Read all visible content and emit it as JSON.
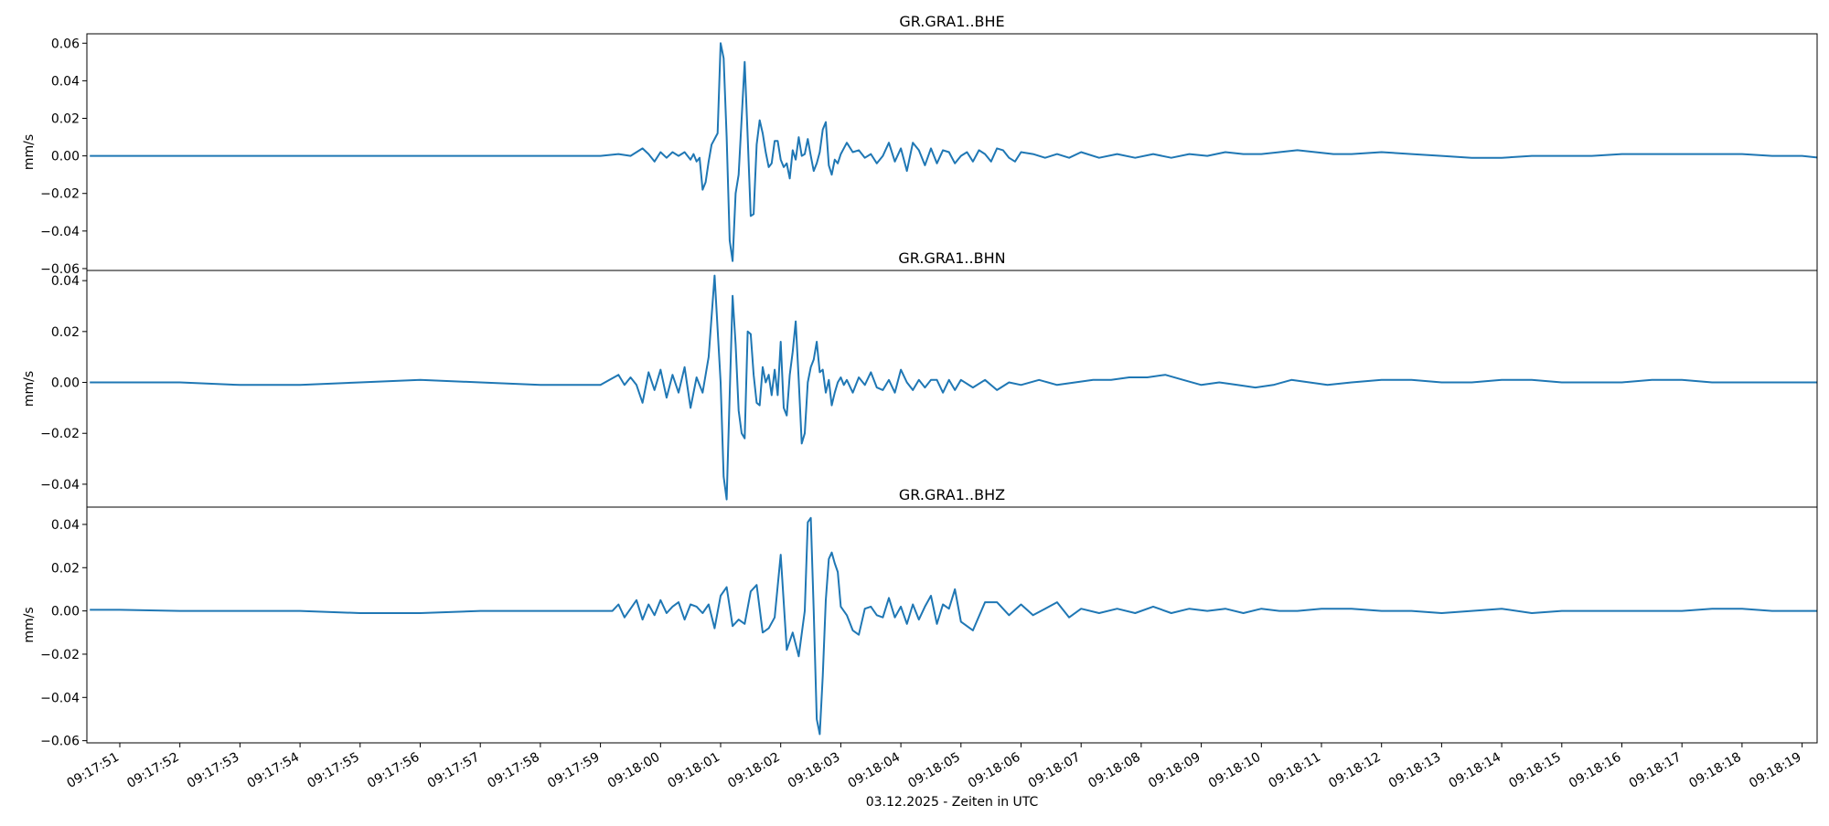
{
  "chart_data": {
    "type": "line",
    "line_color": "#1f77b4",
    "xlabel": "03.12.2025 - Zeiten in UTC",
    "x_ticks": [
      "09:17:51",
      "09:17:52",
      "09:17:53",
      "09:17:54",
      "09:17:55",
      "09:17:56",
      "09:17:57",
      "09:17:58",
      "09:17:59",
      "09:18:00",
      "09:18:01",
      "09:18:02",
      "09:18:03",
      "09:18:04",
      "09:18:05",
      "09:18:06",
      "09:18:07",
      "09:18:08",
      "09:18:09",
      "09:18:10",
      "09:18:11",
      "09:18:12",
      "09:18:13",
      "09:18:14",
      "09:18:15",
      "09:18:16",
      "09:18:17",
      "09:18:18",
      "09:18:19"
    ],
    "xlim": [
      "09:17:50.5",
      "09:18:19.3"
    ],
    "panels": [
      {
        "title": "GR.GRA1..BHE",
        "ylabel": "mm/s",
        "ylim": [
          -0.061,
          0.065
        ],
        "y_ticks": [
          "0.06",
          "0.04",
          "0.02",
          "0.00",
          "−0.02",
          "−0.04",
          "−0.06"
        ],
        "y_tick_values": [
          0.06,
          0.04,
          0.02,
          0.0,
          -0.02,
          -0.04,
          -0.06
        ],
        "series": [
          {
            "x": [
              -0.5,
              0,
              2,
              4,
              6,
              8,
              8.3,
              8.5,
              8.7,
              8.8,
              8.9,
              9.0,
              9.1,
              9.2,
              9.3,
              9.4,
              9.5,
              9.55,
              9.6,
              9.65,
              9.7,
              9.75,
              9.8,
              9.85,
              9.9,
              9.95,
              10.0,
              10.05,
              10.1,
              10.15,
              10.2,
              10.25,
              10.3,
              10.35,
              10.4,
              10.45,
              10.5,
              10.55,
              10.6,
              10.65,
              10.7,
              10.75,
              10.8,
              10.85,
              10.9,
              10.95,
              11.0,
              11.05,
              11.1,
              11.15,
              11.2,
              11.25,
              11.3,
              11.35,
              11.4,
              11.45,
              11.5,
              11.55,
              11.6,
              11.65,
              11.7,
              11.75,
              11.8,
              11.85,
              11.9,
              11.95,
              12.0,
              12.1,
              12.2,
              12.3,
              12.4,
              12.5,
              12.6,
              12.7,
              12.8,
              12.9,
              13.0,
              13.1,
              13.2,
              13.3,
              13.4,
              13.5,
              13.6,
              13.7,
              13.8,
              13.9,
              14.0,
              14.1,
              14.2,
              14.3,
              14.4,
              14.5,
              14.6,
              14.7,
              14.8,
              14.9,
              15.0,
              15.2,
              15.4,
              15.6,
              15.8,
              16.0,
              16.3,
              16.6,
              16.9,
              17.2,
              17.5,
              17.8,
              18.1,
              18.4,
              18.7,
              19.0,
              19.3,
              19.6,
              19.9,
              20.2,
              20.5,
              21.0,
              21.5,
              22.0,
              22.5,
              23.0,
              23.5,
              24.0,
              24.5,
              25.0,
              25.5,
              26.0,
              26.5,
              27.0,
              27.5,
              28.0,
              28.3
            ],
            "y": [
              0,
              0,
              0,
              0,
              0,
              0,
              0.001,
              0.0,
              0.004,
              0.001,
              -0.003,
              0.002,
              -0.001,
              0.002,
              0.0,
              0.002,
              -0.002,
              0.001,
              -0.003,
              -0.001,
              -0.018,
              -0.014,
              -0.003,
              0.006,
              0.009,
              0.012,
              0.06,
              0.052,
              0.01,
              -0.045,
              -0.056,
              -0.02,
              -0.01,
              0.02,
              0.05,
              0.01,
              -0.032,
              -0.031,
              0.006,
              0.019,
              0.012,
              0.002,
              -0.006,
              -0.004,
              0.008,
              0.008,
              -0.002,
              -0.006,
              -0.004,
              -0.012,
              0.003,
              -0.002,
              0.01,
              0.0,
              0.001,
              0.009,
              0.0,
              -0.008,
              -0.004,
              0.002,
              0.014,
              0.018,
              -0.005,
              -0.01,
              -0.002,
              -0.004,
              0.001,
              0.007,
              0.002,
              0.003,
              -0.001,
              0.001,
              -0.004,
              0.0,
              0.007,
              -0.003,
              0.004,
              -0.008,
              0.007,
              0.003,
              -0.005,
              0.004,
              -0.004,
              0.003,
              0.002,
              -0.004,
              0.0,
              0.002,
              -0.003,
              0.003,
              0.001,
              -0.003,
              0.004,
              0.003,
              -0.001,
              -0.003,
              0.002,
              0.001,
              -0.001,
              0.001,
              -0.001,
              0.002,
              -0.001,
              0.001,
              -0.001,
              0.001,
              -0.001,
              0.001,
              0.0,
              0.002,
              0.001,
              0.001,
              0.002,
              0.003,
              0.002,
              0.001,
              0.001,
              0.002,
              0.001,
              0.0,
              -0.001,
              -0.001,
              0.0,
              0.0,
              0.0,
              0.001,
              0.001,
              0.001,
              0.001,
              0.001,
              0.0,
              0.0,
              -0.001
            ]
          }
        ]
      },
      {
        "title": "GR.GRA1..BHN",
        "ylabel": "mm/s",
        "ylim": [
          -0.049,
          0.044
        ],
        "y_ticks": [
          "0.04",
          "0.02",
          "0.00",
          "−0.02",
          "−0.04"
        ],
        "y_tick_values": [
          0.04,
          0.02,
          0.0,
          -0.02,
          -0.04
        ],
        "series": [
          {
            "x": [
              -0.5,
              1,
              2,
              3,
              4,
              5,
              6,
              7,
              8,
              8.3,
              8.4,
              8.5,
              8.6,
              8.7,
              8.8,
              8.9,
              9.0,
              9.1,
              9.2,
              9.3,
              9.4,
              9.5,
              9.6,
              9.7,
              9.8,
              9.9,
              10.0,
              10.05,
              10.1,
              10.15,
              10.2,
              10.25,
              10.3,
              10.35,
              10.4,
              10.45,
              10.5,
              10.55,
              10.6,
              10.65,
              10.7,
              10.75,
              10.8,
              10.85,
              10.9,
              10.95,
              11.0,
              11.05,
              11.1,
              11.15,
              11.2,
              11.25,
              11.3,
              11.35,
              11.4,
              11.45,
              11.5,
              11.55,
              11.6,
              11.65,
              11.7,
              11.75,
              11.8,
              11.85,
              11.9,
              11.95,
              12.0,
              12.05,
              12.1,
              12.2,
              12.3,
              12.4,
              12.5,
              12.6,
              12.7,
              12.8,
              12.9,
              13.0,
              13.1,
              13.2,
              13.3,
              13.4,
              13.5,
              13.6,
              13.7,
              13.8,
              13.9,
              14.0,
              14.2,
              14.4,
              14.6,
              14.8,
              15.0,
              15.3,
              15.6,
              15.9,
              16.2,
              16.5,
              16.8,
              17.1,
              17.4,
              17.7,
              18.0,
              18.3,
              18.6,
              18.9,
              19.2,
              19.5,
              19.8,
              20.1,
              20.5,
              21.0,
              21.5,
              22.0,
              22.5,
              23.0,
              23.5,
              24.0,
              24.5,
              25.0,
              25.5,
              26.0,
              26.5,
              27.0,
              27.5,
              28.0,
              28.3
            ],
            "y": [
              0,
              0,
              -0.001,
              -0.001,
              0.0,
              0.001,
              0.0,
              -0.001,
              -0.001,
              0.003,
              -0.001,
              0.002,
              -0.001,
              -0.008,
              0.004,
              -0.003,
              0.005,
              -0.006,
              0.003,
              -0.004,
              0.006,
              -0.01,
              0.002,
              -0.004,
              0.01,
              0.042,
              0.0,
              -0.037,
              -0.046,
              -0.005,
              0.034,
              0.015,
              -0.011,
              -0.02,
              -0.022,
              0.02,
              0.019,
              0.003,
              -0.008,
              -0.009,
              0.006,
              0.0,
              0.003,
              -0.005,
              0.005,
              -0.005,
              0.016,
              -0.01,
              -0.013,
              0.003,
              0.012,
              0.024,
              0.001,
              -0.024,
              -0.02,
              0.0,
              0.006,
              0.009,
              0.016,
              0.004,
              0.005,
              -0.004,
              0.001,
              -0.009,
              -0.004,
              0.0,
              0.002,
              -0.001,
              0.001,
              -0.004,
              0.002,
              -0.001,
              0.004,
              -0.002,
              -0.003,
              0.001,
              -0.004,
              0.005,
              0.0,
              -0.003,
              0.001,
              -0.002,
              0.001,
              0.001,
              -0.004,
              0.001,
              -0.003,
              0.001,
              -0.002,
              0.001,
              -0.003,
              0.0,
              -0.001,
              0.001,
              -0.001,
              0.0,
              0.001,
              0.001,
              0.002,
              0.002,
              0.003,
              0.001,
              -0.001,
              0.0,
              -0.001,
              -0.002,
              -0.001,
              0.001,
              0.0,
              -0.001,
              0.0,
              0.001,
              0.001,
              0.0,
              0.0,
              0.001,
              0.001,
              0.0,
              0.0,
              0.0,
              0.001,
              0.001,
              0.0,
              0.0,
              0.0,
              0.0,
              0.0
            ]
          }
        ]
      },
      {
        "title": "GR.GRA1..BHZ",
        "ylabel": "mm/s",
        "ylim": [
          -0.061,
          0.048
        ],
        "y_ticks": [
          "0.04",
          "0.02",
          "0.00",
          "−0.02",
          "−0.04",
          "−0.06"
        ],
        "y_tick_values": [
          0.04,
          0.02,
          0.0,
          -0.02,
          -0.04,
          -0.06
        ],
        "series": [
          {
            "x": [
              -0.5,
              0,
              1,
              2,
              3,
              4,
              5,
              6,
              7,
              8,
              8.2,
              8.3,
              8.4,
              8.5,
              8.6,
              8.7,
              8.8,
              8.9,
              9.0,
              9.1,
              9.2,
              9.3,
              9.4,
              9.5,
              9.6,
              9.7,
              9.8,
              9.9,
              10.0,
              10.1,
              10.2,
              10.3,
              10.4,
              10.5,
              10.6,
              10.7,
              10.8,
              10.9,
              11.0,
              11.1,
              11.2,
              11.3,
              11.4,
              11.45,
              11.5,
              11.55,
              11.6,
              11.65,
              11.7,
              11.75,
              11.8,
              11.85,
              11.9,
              11.95,
              12.0,
              12.1,
              12.2,
              12.3,
              12.4,
              12.5,
              12.6,
              12.7,
              12.8,
              12.9,
              13.0,
              13.1,
              13.2,
              13.3,
              13.4,
              13.5,
              13.6,
              13.7,
              13.8,
              13.9,
              14.0,
              14.2,
              14.4,
              14.6,
              14.8,
              15.0,
              15.2,
              15.4,
              15.6,
              15.8,
              16.0,
              16.3,
              16.6,
              16.9,
              17.2,
              17.5,
              17.8,
              18.1,
              18.4,
              18.7,
              19.0,
              19.3,
              19.6,
              20.0,
              20.5,
              21.0,
              21.5,
              22.0,
              22.5,
              23.0,
              23.5,
              24.0,
              24.5,
              25.0,
              25.5,
              26.0,
              26.5,
              27.0,
              27.5,
              28.0,
              28.3
            ],
            "y": [
              0.0005,
              0.0005,
              0,
              0,
              0,
              -0.001,
              -0.001,
              0,
              0,
              0,
              0.0,
              0.003,
              -0.003,
              0.001,
              0.005,
              -0.004,
              0.003,
              -0.002,
              0.005,
              -0.001,
              0.002,
              0.004,
              -0.004,
              0.003,
              0.002,
              -0.001,
              0.003,
              -0.008,
              0.007,
              0.011,
              -0.007,
              -0.004,
              -0.006,
              0.009,
              0.012,
              -0.01,
              -0.008,
              -0.003,
              0.026,
              -0.018,
              -0.01,
              -0.021,
              0.0,
              0.041,
              0.043,
              0.0,
              -0.05,
              -0.057,
              -0.03,
              0.005,
              0.024,
              0.027,
              0.022,
              0.018,
              0.002,
              -0.002,
              -0.009,
              -0.011,
              0.001,
              0.002,
              -0.002,
              -0.003,
              0.006,
              -0.003,
              0.002,
              -0.006,
              0.003,
              -0.004,
              0.002,
              0.007,
              -0.006,
              0.003,
              0.001,
              0.01,
              -0.005,
              -0.009,
              0.004,
              0.004,
              -0.002,
              0.003,
              -0.002,
              0.001,
              0.004,
              -0.003,
              0.001,
              -0.001,
              0.001,
              -0.001,
              0.002,
              -0.001,
              0.001,
              0.0,
              0.001,
              -0.001,
              0.001,
              0.0,
              0.0,
              0.001,
              0.001,
              0.0,
              0.0,
              -0.001,
              0.0,
              0.001,
              -0.001,
              0.0,
              0.0,
              0.0,
              0.0,
              0.0,
              0.001,
              0.001,
              0.0,
              0.0,
              0.0
            ]
          }
        ]
      }
    ]
  }
}
